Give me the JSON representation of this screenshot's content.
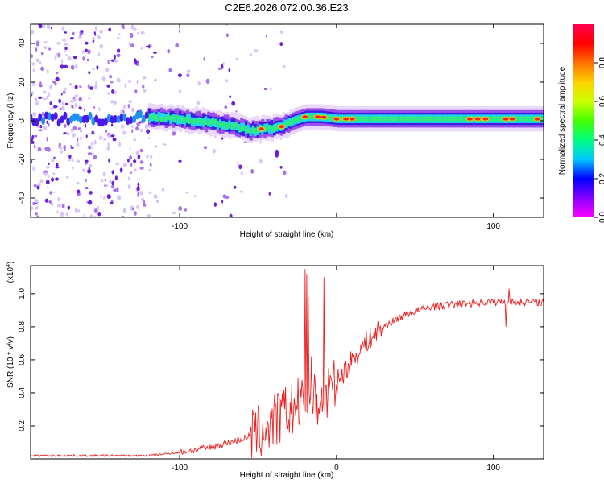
{
  "title": "C2E6.2026.072.00.36.E23",
  "chart_data": [
    {
      "type": "heatmap",
      "name": "spectrogram",
      "xlabel": "Height of straight line (km)",
      "ylabel": "Frequency (Hz)",
      "xlim": [
        -195,
        132
      ],
      "ylim": [
        -50,
        50
      ],
      "xticks": [
        -100,
        0,
        100
      ],
      "xtick_labels": [
        "-100",
        "",
        "100"
      ],
      "yticks": [
        -40,
        -20,
        0,
        20,
        40
      ],
      "ytick_labels": [
        "-40",
        "-20",
        "0",
        "20",
        "40"
      ],
      "ridge": {
        "x": [
          -195,
          -150,
          -120,
          -100,
          -80,
          -65,
          -55,
          -45,
          -35,
          -28,
          -20,
          -10,
          0,
          20,
          60,
          100,
          132
        ],
        "freq": [
          1,
          1,
          2,
          1,
          -1,
          -3,
          -5,
          -4,
          -3,
          0,
          2,
          2,
          1,
          1,
          1,
          1,
          1
        ]
      },
      "hot_spots": [
        -48,
        -35,
        -20,
        -12,
        -8,
        0,
        6,
        10,
        85,
        90,
        95,
        108,
        112,
        128
      ],
      "colorbar": {
        "label": "Normalized spectral amplitude",
        "range": [
          0.0,
          1.0
        ],
        "ticks": [
          0.0,
          0.2,
          0.4,
          0.6,
          0.8
        ],
        "tick_labels": [
          "0.0",
          "0.2",
          "0.4",
          "0.6",
          "0.8"
        ],
        "colors": [
          "#ff00ff",
          "#8800ff",
          "#0000ff",
          "#00c8ff",
          "#00ff80",
          "#44ff00",
          "#ccff00",
          "#ffd000",
          "#ff7000",
          "#ff0000",
          "#ff0050"
        ]
      }
    },
    {
      "type": "line",
      "name": "snr",
      "xlabel": "Height of straight line (km)",
      "ylabel": "SNR (10 * v/v)",
      "scale_label": "(x10",
      "scale_exp": "4",
      "scale_close": ")",
      "xlim": [
        -195,
        132
      ],
      "ylim": [
        0.0,
        1.17
      ],
      "xticks": [
        -100,
        0,
        100
      ],
      "xtick_labels": [
        "-100",
        "0",
        "100"
      ],
      "yticks": [
        0.2,
        0.4,
        0.6,
        0.8,
        1.0
      ],
      "ytick_labels": [
        "0.2",
        "0.4",
        "0.6",
        "0.8",
        "1.0"
      ],
      "color": "#ee2222",
      "trend": {
        "x": [
          -195,
          -150,
          -120,
          -100,
          -80,
          -60,
          -45,
          -35,
          -25,
          -15,
          -5,
          0,
          10,
          20,
          30,
          45,
          60,
          80,
          100,
          132
        ],
        "y": [
          0.02,
          0.02,
          0.02,
          0.04,
          0.07,
          0.12,
          0.18,
          0.26,
          0.32,
          0.34,
          0.38,
          0.46,
          0.6,
          0.72,
          0.8,
          0.88,
          0.92,
          0.94,
          0.95,
          0.95
        ]
      },
      "spikes": [
        {
          "x": -20,
          "y": 1.15
        },
        {
          "x": -19,
          "y": 1.12
        },
        {
          "x": -18,
          "y": 0.98
        },
        {
          "x": -16,
          "y": 0.62
        },
        {
          "x": -8,
          "y": 1.1
        },
        {
          "x": -5,
          "y": 0.55
        },
        {
          "x": 108,
          "y": 0.8
        },
        {
          "x": 110,
          "y": 1.03
        }
      ]
    }
  ]
}
